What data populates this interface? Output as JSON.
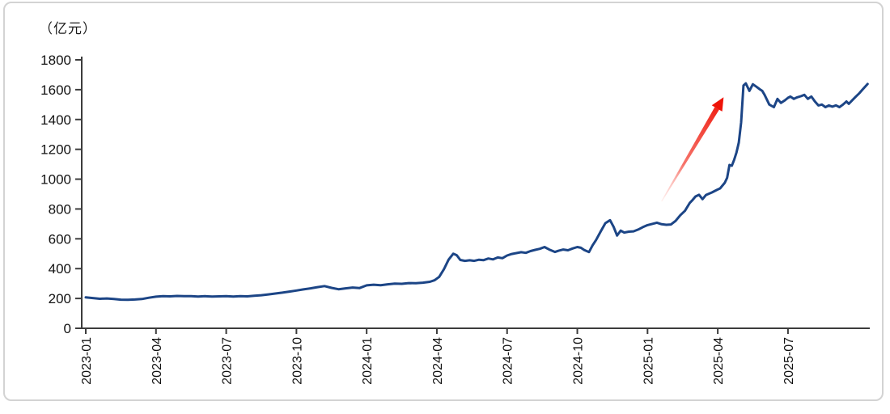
{
  "frame": {
    "background_color": "#ffffff",
    "border_color": "#d3d3d3"
  },
  "chart": {
    "unit_label": "（亿元）"
  },
  "chart_data": {
    "type": "line",
    "title": "",
    "ylabel": "（亿元）",
    "unit": "亿元",
    "ylim": [
      0,
      1800
    ],
    "ytick_interval": 200,
    "yticks": [
      0,
      200,
      400,
      600,
      800,
      1000,
      1200,
      1400,
      1600,
      1800
    ],
    "xtick_labels": [
      "2023-01",
      "2023-04",
      "2023-07",
      "2023-10",
      "2024-01",
      "2024-04",
      "2024-07",
      "2024-10",
      "2025-01",
      "2025-04",
      "2025-07"
    ],
    "xtick_month_offsets": [
      0,
      3,
      6,
      9,
      12,
      15,
      18,
      21,
      24,
      27,
      30
    ],
    "x_unit": "months since 2023-01",
    "grid": false,
    "legend_position": "none",
    "line_color": "#1c4586",
    "axis_color": "#3c3c3c",
    "series": [
      {
        "name": "series-1",
        "points": [
          [
            0,
            207
          ],
          [
            0.3,
            203
          ],
          [
            0.6,
            198
          ],
          [
            0.9,
            200
          ],
          [
            1.2,
            196
          ],
          [
            1.5,
            192
          ],
          [
            1.8,
            191
          ],
          [
            2.1,
            193
          ],
          [
            2.4,
            196
          ],
          [
            2.7,
            205
          ],
          [
            3.0,
            212
          ],
          [
            3.3,
            216
          ],
          [
            3.6,
            214
          ],
          [
            3.9,
            217
          ],
          [
            4.2,
            215
          ],
          [
            4.5,
            216
          ],
          [
            4.8,
            213
          ],
          [
            5.1,
            215
          ],
          [
            5.4,
            213
          ],
          [
            5.7,
            214
          ],
          [
            6.0,
            215
          ],
          [
            6.3,
            213
          ],
          [
            6.6,
            216
          ],
          [
            6.9,
            214
          ],
          [
            7.2,
            218
          ],
          [
            7.5,
            222
          ],
          [
            7.8,
            227
          ],
          [
            8.1,
            233
          ],
          [
            8.4,
            239
          ],
          [
            8.7,
            246
          ],
          [
            9.0,
            253
          ],
          [
            9.3,
            261
          ],
          [
            9.6,
            268
          ],
          [
            9.9,
            276
          ],
          [
            10.2,
            283
          ],
          [
            10.5,
            271
          ],
          [
            10.8,
            262
          ],
          [
            11.1,
            268
          ],
          [
            11.4,
            273
          ],
          [
            11.7,
            270
          ],
          [
            12.0,
            288
          ],
          [
            12.3,
            292
          ],
          [
            12.6,
            289
          ],
          [
            12.9,
            295
          ],
          [
            13.2,
            300
          ],
          [
            13.5,
            298
          ],
          [
            13.8,
            303
          ],
          [
            14.1,
            302
          ],
          [
            14.4,
            306
          ],
          [
            14.7,
            312
          ],
          [
            14.9,
            322
          ],
          [
            15.1,
            345
          ],
          [
            15.3,
            395
          ],
          [
            15.5,
            460
          ],
          [
            15.7,
            500
          ],
          [
            15.85,
            490
          ],
          [
            16.0,
            458
          ],
          [
            16.2,
            452
          ],
          [
            16.4,
            456
          ],
          [
            16.6,
            452
          ],
          [
            16.8,
            460
          ],
          [
            17.0,
            457
          ],
          [
            17.2,
            468
          ],
          [
            17.4,
            462
          ],
          [
            17.6,
            475
          ],
          [
            17.8,
            470
          ],
          [
            18.0,
            488
          ],
          [
            18.2,
            498
          ],
          [
            18.4,
            504
          ],
          [
            18.6,
            510
          ],
          [
            18.8,
            506
          ],
          [
            19.0,
            518
          ],
          [
            19.2,
            526
          ],
          [
            19.4,
            533
          ],
          [
            19.6,
            545
          ],
          [
            19.8,
            528
          ],
          [
            20.05,
            512
          ],
          [
            20.2,
            520
          ],
          [
            20.4,
            528
          ],
          [
            20.6,
            523
          ],
          [
            20.8,
            535
          ],
          [
            21.0,
            545
          ],
          [
            21.15,
            540
          ],
          [
            21.3,
            525
          ],
          [
            21.5,
            511
          ],
          [
            21.65,
            555
          ],
          [
            21.8,
            592
          ],
          [
            22.0,
            650
          ],
          [
            22.2,
            705
          ],
          [
            22.4,
            725
          ],
          [
            22.55,
            680
          ],
          [
            22.7,
            622
          ],
          [
            22.85,
            655
          ],
          [
            23.0,
            642
          ],
          [
            23.2,
            648
          ],
          [
            23.4,
            650
          ],
          [
            23.6,
            662
          ],
          [
            23.8,
            678
          ],
          [
            24.0,
            692
          ],
          [
            24.2,
            700
          ],
          [
            24.4,
            708
          ],
          [
            24.6,
            698
          ],
          [
            24.8,
            694
          ],
          [
            25.0,
            696
          ],
          [
            25.2,
            720
          ],
          [
            25.4,
            758
          ],
          [
            25.6,
            788
          ],
          [
            25.8,
            840
          ],
          [
            25.9,
            856
          ],
          [
            26.05,
            884
          ],
          [
            26.2,
            895
          ],
          [
            26.35,
            866
          ],
          [
            26.5,
            894
          ],
          [
            26.75,
            911
          ],
          [
            26.95,
            927
          ],
          [
            27.1,
            938
          ],
          [
            27.3,
            976
          ],
          [
            27.4,
            1009
          ],
          [
            27.5,
            1095
          ],
          [
            27.6,
            1090
          ],
          [
            27.7,
            1130
          ],
          [
            27.8,
            1180
          ],
          [
            27.9,
            1245
          ],
          [
            28.0,
            1380
          ],
          [
            28.1,
            1628
          ],
          [
            28.2,
            1642
          ],
          [
            28.35,
            1592
          ],
          [
            28.5,
            1636
          ],
          [
            28.65,
            1620
          ],
          [
            28.8,
            1602
          ],
          [
            28.9,
            1592
          ],
          [
            29.0,
            1565
          ],
          [
            29.2,
            1500
          ],
          [
            29.4,
            1483
          ],
          [
            29.55,
            1538
          ],
          [
            29.7,
            1511
          ],
          [
            29.85,
            1527
          ],
          [
            30.0,
            1545
          ],
          [
            30.1,
            1554
          ],
          [
            30.25,
            1538
          ],
          [
            30.4,
            1549
          ],
          [
            30.55,
            1556
          ],
          [
            30.7,
            1565
          ],
          [
            30.85,
            1538
          ],
          [
            31.0,
            1554
          ],
          [
            31.15,
            1521
          ],
          [
            31.3,
            1494
          ],
          [
            31.45,
            1500
          ],
          [
            31.6,
            1483
          ],
          [
            31.75,
            1494
          ],
          [
            31.9,
            1486
          ],
          [
            32.05,
            1495
          ],
          [
            32.2,
            1483
          ],
          [
            32.35,
            1500
          ],
          [
            32.5,
            1521
          ],
          [
            32.6,
            1505
          ],
          [
            32.75,
            1530
          ],
          [
            32.9,
            1554
          ],
          [
            33.05,
            1576
          ],
          [
            33.2,
            1603
          ],
          [
            33.4,
            1638
          ]
        ]
      }
    ],
    "annotation": {
      "type": "arrow",
      "name": "sharp-rise-arrow",
      "color": "#ee1408",
      "from": [
        24.6,
        851
      ],
      "to": [
        27.25,
        1549
      ]
    }
  }
}
